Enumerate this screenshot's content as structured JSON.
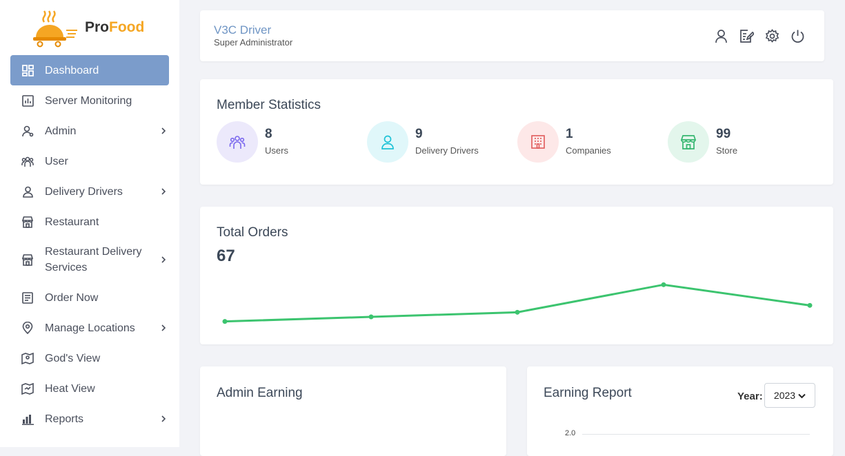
{
  "logo": {
    "text_part1": "Pro",
    "text_part2": "Food"
  },
  "sidebar": {
    "items": [
      {
        "label": "Dashboard",
        "icon": "dashboard-icon",
        "active": true,
        "has_children": false
      },
      {
        "label": "Server Monitoring",
        "icon": "chart-box-icon",
        "has_children": false
      },
      {
        "label": "Admin",
        "icon": "admin-user-icon",
        "has_children": true
      },
      {
        "label": "User",
        "icon": "users-icon",
        "has_children": false
      },
      {
        "label": "Delivery Drivers",
        "icon": "driver-icon",
        "has_children": true
      },
      {
        "label": "Restaurant",
        "icon": "store-icon",
        "has_children": false
      },
      {
        "label": "Restaurant Delivery Services",
        "icon": "store-icon",
        "has_children": true
      },
      {
        "label": "Order Now",
        "icon": "order-list-icon",
        "has_children": false
      },
      {
        "label": "Manage Locations",
        "icon": "location-pin-icon",
        "has_children": true
      },
      {
        "label": "God's View",
        "icon": "map-pin-icon",
        "has_children": false
      },
      {
        "label": "Heat View",
        "icon": "heat-map-icon",
        "has_children": false
      },
      {
        "label": "Reports",
        "icon": "bar-chart-icon",
        "has_children": true
      }
    ]
  },
  "header": {
    "name": "V3C Driver",
    "role": "Super Administrator",
    "icons": [
      "profile-icon",
      "edit-icon",
      "settings-icon",
      "power-icon"
    ]
  },
  "stats": {
    "title": "Member Statistics",
    "items": [
      {
        "value": "8",
        "label": "Users",
        "icon": "users-icon",
        "color": "#7b68ee",
        "bg": "#ece9fb"
      },
      {
        "value": "9",
        "label": "Delivery Drivers",
        "icon": "driver-icon",
        "color": "#1cc2d6",
        "bg": "#e0f7fa"
      },
      {
        "value": "1",
        "label": "Companies",
        "icon": "building-icon",
        "color": "#e05a5a",
        "bg": "#fde8e8"
      },
      {
        "value": "99",
        "label": "Store",
        "icon": "store-icon",
        "color": "#34b66f",
        "bg": "#e3f6ec"
      }
    ]
  },
  "orders": {
    "title": "Total Orders",
    "total": "67",
    "line_color": "#3cc46f"
  },
  "chart_data": {
    "type": "line",
    "x": [
      1,
      2,
      3,
      4,
      5
    ],
    "values": [
      12,
      13,
      14,
      20,
      15.5
    ],
    "ylim": [
      10,
      22
    ]
  },
  "admin_earning": {
    "title": "Admin Earning"
  },
  "earning_report": {
    "title": "Earning Report",
    "year_label": "Year:",
    "year_value": "2023",
    "y_tick": "2.0"
  }
}
